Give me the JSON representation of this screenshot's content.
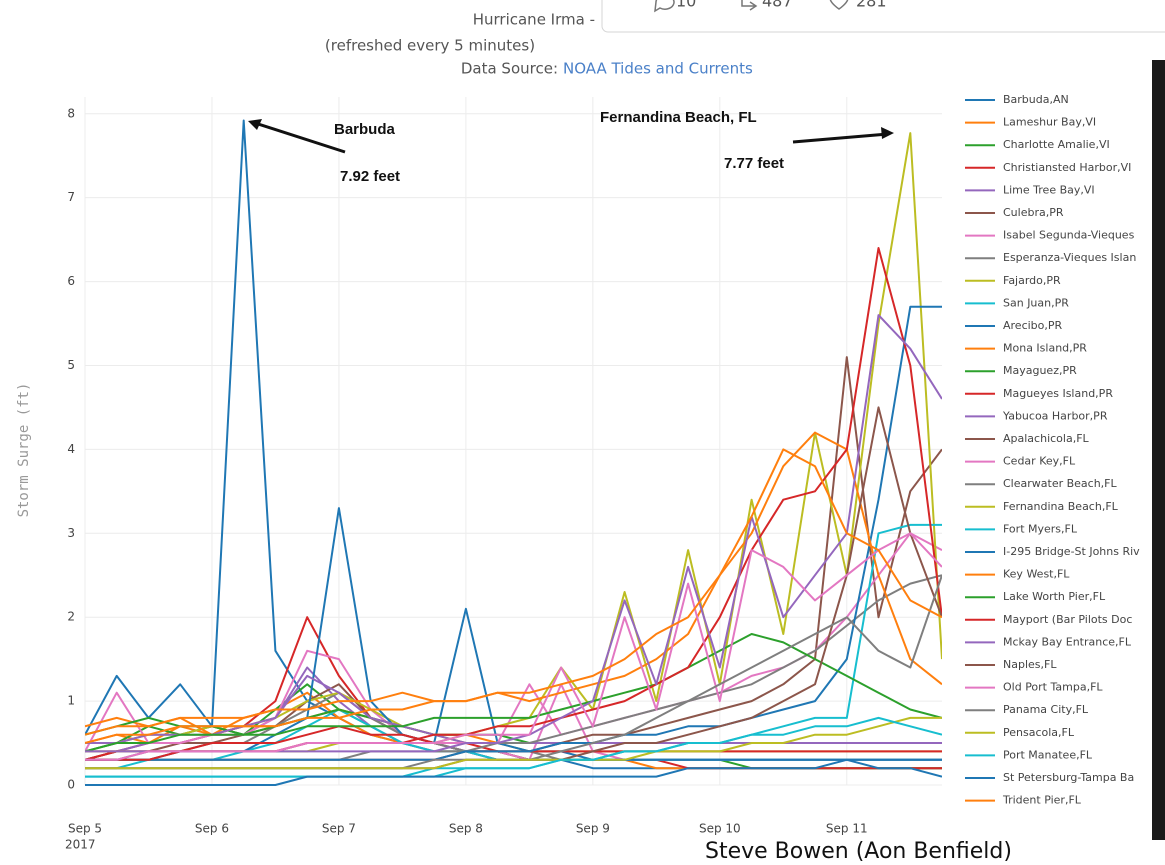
{
  "chart_data": {
    "type": "line",
    "title": "Hurricane Irma -",
    "subtitle": "(refreshed every 5 minutes)",
    "source_label": "Data Source:",
    "source_link": "NOAA Tides and Currents",
    "y_label": "Storm Surge (ft)",
    "x_year": "2017",
    "xlim": [
      5,
      11.75
    ],
    "xticks": [
      {
        "value": 5,
        "label": "Sep 5"
      },
      {
        "value": 6,
        "label": "Sep 6"
      },
      {
        "value": 7,
        "label": "Sep 7"
      },
      {
        "value": 8,
        "label": "Sep 8"
      },
      {
        "value": 9,
        "label": "Sep 9"
      },
      {
        "value": 10,
        "label": "Sep 10"
      },
      {
        "value": 11,
        "label": "Sep 11"
      }
    ],
    "ylim": [
      0,
      8.2
    ],
    "yticks": [
      0,
      1,
      2,
      3,
      4,
      5,
      6,
      7,
      8
    ],
    "grid": true,
    "legend": "right",
    "annotations": [
      {
        "text": "Barbuda",
        "value_text": "7.92 feet"
      },
      {
        "text": "Fernandina Beach, FL",
        "value_text": "7.77 feet"
      }
    ],
    "x": [
      5,
      5.25,
      5.5,
      5.75,
      6,
      6.25,
      6.5,
      6.75,
      7,
      7.25,
      7.5,
      7.75,
      8,
      8.25,
      8.5,
      8.75,
      9,
      9.25,
      9.5,
      9.75,
      10,
      10.25,
      10.5,
      10.75,
      11,
      11.25,
      11.5,
      11.75
    ],
    "series": [
      {
        "name": "Barbuda,AN",
        "color": "#1f77b4",
        "values": [
          0.6,
          1.3,
          0.8,
          1.2,
          0.7,
          7.92,
          1.6,
          1.0,
          0.8,
          0.6,
          0.5,
          0.5,
          0.4,
          0.3,
          0.3,
          0.3,
          0.2,
          0.2,
          0.2,
          0.2,
          0.2,
          0.2,
          0.2,
          0.2,
          0.2,
          0.2,
          0.2,
          0.2
        ]
      },
      {
        "name": "Lameshur Bay,VI",
        "color": "#ff7f0e",
        "values": [
          0.5,
          0.6,
          0.5,
          0.7,
          0.6,
          0.8,
          0.9,
          1.1,
          0.8,
          0.6,
          0.5,
          0.4,
          0.4,
          0.3,
          0.3,
          0.3,
          0.3,
          0.3,
          0.2,
          0.2,
          0.2,
          0.2,
          0.2,
          0.2,
          0.2,
          0.2,
          0.2,
          0.2
        ]
      },
      {
        "name": "Charlotte Amalie,VI",
        "color": "#2ca02c",
        "values": [
          0.4,
          0.5,
          0.7,
          0.6,
          0.7,
          0.6,
          0.9,
          1.2,
          0.9,
          0.7,
          0.5,
          0.5,
          0.4,
          0.4,
          0.3,
          0.3,
          0.3,
          0.3,
          0.3,
          0.3,
          0.3,
          0.2,
          0.2,
          0.2,
          0.2,
          0.2,
          0.2,
          0.2
        ]
      },
      {
        "name": "Christiansted Harbor,VI",
        "color": "#d62728",
        "values": [
          0.3,
          0.4,
          0.5,
          0.5,
          0.6,
          0.7,
          1.0,
          2.0,
          1.3,
          0.8,
          0.6,
          0.5,
          0.4,
          0.4,
          0.3,
          0.3,
          0.3,
          0.3,
          0.3,
          0.2,
          0.2,
          0.2,
          0.2,
          0.2,
          0.2,
          0.2,
          0.2,
          0.2
        ]
      },
      {
        "name": "Lime Tree Bay,VI",
        "color": "#9467bd",
        "values": [
          0.4,
          0.4,
          0.5,
          0.5,
          0.6,
          0.6,
          0.8,
          1.4,
          1.0,
          0.7,
          0.5,
          0.4,
          0.4,
          0.3,
          0.3,
          0.3,
          0.3,
          0.3,
          0.3,
          0.3,
          0.3,
          0.3,
          0.3,
          0.3,
          0.3,
          0.3,
          0.3,
          0.3
        ]
      },
      {
        "name": "Culebra,PR",
        "color": "#8c564b",
        "values": [
          0.3,
          0.4,
          0.4,
          0.5,
          0.5,
          0.6,
          0.7,
          1.0,
          1.2,
          0.8,
          0.6,
          0.5,
          0.4,
          0.4,
          0.3,
          0.3,
          0.3,
          0.3,
          0.3,
          0.3,
          0.3,
          0.3,
          0.3,
          0.3,
          0.3,
          0.3,
          0.3,
          0.3
        ]
      },
      {
        "name": "Isabel Segunda-Vieques",
        "color": "#e377c2",
        "values": [
          0.4,
          1.1,
          0.5,
          0.5,
          0.6,
          0.6,
          0.8,
          1.6,
          1.5,
          0.9,
          0.6,
          0.5,
          0.4,
          0.4,
          0.3,
          1.2,
          0.4,
          0.3,
          0.3,
          0.3,
          0.3,
          0.3,
          0.3,
          0.3,
          0.3,
          0.3,
          0.3,
          0.3
        ]
      },
      {
        "name": "Esperanza-Vieques Islan",
        "color": "#7f7f7f",
        "values": [
          0.3,
          0.3,
          0.4,
          0.4,
          0.5,
          0.5,
          0.7,
          0.9,
          1.1,
          0.8,
          0.6,
          0.5,
          0.4,
          0.4,
          0.4,
          0.3,
          0.3,
          0.3,
          0.3,
          0.3,
          0.3,
          0.3,
          0.3,
          0.3,
          0.3,
          0.3,
          0.3,
          0.3
        ]
      },
      {
        "name": "Fajardo,PR",
        "color": "#bcbd22",
        "values": [
          0.5,
          0.5,
          0.6,
          0.6,
          0.7,
          0.7,
          0.8,
          1.0,
          1.1,
          0.9,
          0.7,
          0.6,
          0.5,
          0.5,
          0.4,
          0.4,
          0.4,
          0.4,
          0.4,
          0.4,
          0.4,
          0.4,
          0.4,
          0.4,
          0.4,
          0.4,
          0.4,
          0.4
        ]
      },
      {
        "name": "San Juan,PR",
        "color": "#17becf",
        "values": [
          0.2,
          0.2,
          0.3,
          0.3,
          0.3,
          0.4,
          0.5,
          0.7,
          0.9,
          0.7,
          0.5,
          0.4,
          0.4,
          0.3,
          0.3,
          0.3,
          0.3,
          0.3,
          0.3,
          0.3,
          0.3,
          0.3,
          0.3,
          0.3,
          0.3,
          0.3,
          0.3,
          0.3
        ]
      },
      {
        "name": "Arecibo,PR",
        "color": "#1f77b4",
        "values": [
          0.3,
          0.3,
          0.3,
          0.4,
          0.4,
          0.4,
          0.6,
          0.8,
          3.3,
          1.0,
          0.6,
          0.5,
          2.1,
          0.5,
          0.4,
          0.4,
          0.3,
          0.3,
          0.3,
          0.3,
          0.3,
          0.3,
          0.3,
          0.3,
          0.3,
          0.3,
          0.3,
          0.3
        ]
      },
      {
        "name": "Mona Island,PR",
        "color": "#ff7f0e",
        "values": [
          0.7,
          0.8,
          0.7,
          0.8,
          0.6,
          0.7,
          0.7,
          0.8,
          0.9,
          0.8,
          0.7,
          0.6,
          0.6,
          0.5,
          0.5,
          0.5,
          0.5,
          0.5,
          0.5,
          0.5,
          0.5,
          0.5,
          0.5,
          0.5,
          0.5,
          0.5,
          0.5,
          0.5
        ]
      },
      {
        "name": "Mayaguez,PR",
        "color": "#2ca02c",
        "values": [
          0.6,
          0.7,
          0.8,
          0.7,
          0.7,
          0.6,
          0.7,
          0.8,
          0.9,
          0.8,
          0.7,
          0.6,
          0.6,
          0.6,
          0.5,
          0.5,
          0.5,
          0.5,
          0.5,
          0.5,
          0.5,
          0.5,
          0.5,
          0.5,
          0.5,
          0.5,
          0.5,
          0.5
        ]
      },
      {
        "name": "Magueyes Island,PR",
        "color": "#d62728",
        "values": [
          0.3,
          0.4,
          0.4,
          0.4,
          0.5,
          0.5,
          0.5,
          0.6,
          0.7,
          0.6,
          0.6,
          0.5,
          0.5,
          0.4,
          0.4,
          0.4,
          0.4,
          0.4,
          0.4,
          0.4,
          0.4,
          0.4,
          0.4,
          0.4,
          0.4,
          0.4,
          0.4,
          0.4
        ]
      },
      {
        "name": "Yabucoa Harbor,PR",
        "color": "#9467bd",
        "values": [
          0.5,
          0.5,
          0.6,
          0.6,
          0.6,
          0.7,
          0.8,
          1.3,
          1.1,
          0.8,
          0.7,
          0.6,
          0.5,
          0.5,
          0.5,
          0.5,
          0.5,
          0.5,
          0.5,
          0.5,
          0.5,
          0.5,
          0.5,
          0.5,
          0.5,
          0.5,
          0.5,
          0.5
        ]
      },
      {
        "name": "Apalachicola,FL",
        "color": "#8c564b",
        "values": [
          0.3,
          0.3,
          0.3,
          0.3,
          0.3,
          0.3,
          0.3,
          0.3,
          0.3,
          0.3,
          0.3,
          0.3,
          0.4,
          0.4,
          0.4,
          0.5,
          0.6,
          0.6,
          0.7,
          0.8,
          0.9,
          1.0,
          1.2,
          1.5,
          5.1,
          2.0,
          3.5,
          4.0
        ]
      },
      {
        "name": "Cedar Key,FL",
        "color": "#e377c2",
        "values": [
          0.4,
          0.4,
          0.4,
          0.4,
          0.4,
          0.4,
          0.4,
          0.5,
          0.5,
          0.5,
          0.5,
          0.5,
          0.5,
          0.5,
          1.2,
          0.6,
          0.7,
          0.8,
          0.9,
          1.0,
          1.1,
          1.3,
          1.4,
          1.6,
          2.0,
          2.5,
          3.0,
          2.8
        ]
      },
      {
        "name": "Clearwater Beach,FL",
        "color": "#7f7f7f",
        "values": [
          0.3,
          0.3,
          0.3,
          0.3,
          0.3,
          0.3,
          0.3,
          0.3,
          0.3,
          0.4,
          0.4,
          0.4,
          0.4,
          0.5,
          0.5,
          0.6,
          0.7,
          0.8,
          0.9,
          1.0,
          1.1,
          1.2,
          1.4,
          1.6,
          1.9,
          2.2,
          2.4,
          2.5
        ]
      },
      {
        "name": "Fernandina Beach,FL",
        "color": "#bcbd22",
        "values": [
          0.4,
          0.4,
          0.4,
          0.4,
          0.4,
          0.4,
          0.4,
          0.4,
          0.5,
          0.5,
          0.5,
          0.5,
          0.6,
          0.7,
          0.8,
          1.4,
          0.9,
          2.3,
          1.0,
          2.8,
          1.2,
          3.4,
          1.8,
          4.2,
          2.5,
          5.5,
          7.77,
          1.5
        ]
      },
      {
        "name": "Fort Myers,FL",
        "color": "#17becf",
        "values": [
          0.1,
          0.1,
          0.1,
          0.1,
          0.1,
          0.1,
          0.1,
          0.1,
          0.1,
          0.1,
          0.1,
          0.2,
          0.2,
          0.2,
          0.2,
          0.3,
          0.3,
          0.4,
          0.4,
          0.5,
          0.5,
          0.6,
          0.7,
          0.8,
          0.8,
          3.0,
          3.1,
          3.1
        ]
      },
      {
        "name": "I-295 Bridge-St Johns Riv",
        "color": "#1f77b4",
        "values": [
          0.3,
          0.3,
          0.3,
          0.3,
          0.3,
          0.3,
          0.3,
          0.3,
          0.3,
          0.3,
          0.3,
          0.3,
          0.4,
          0.4,
          0.4,
          0.5,
          0.5,
          0.6,
          0.6,
          0.7,
          0.7,
          0.8,
          0.9,
          1.0,
          1.5,
          3.4,
          5.7,
          5.7
        ]
      },
      {
        "name": "Key West,FL",
        "color": "#ff7f0e",
        "values": [
          0.5,
          0.6,
          0.6,
          0.7,
          0.7,
          0.7,
          0.7,
          0.8,
          0.8,
          0.9,
          0.9,
          1.0,
          1.0,
          1.1,
          1.0,
          1.1,
          1.2,
          1.3,
          1.5,
          1.8,
          2.5,
          3.0,
          3.8,
          4.2,
          4.0,
          2.5,
          1.5,
          1.2
        ]
      },
      {
        "name": "Lake Worth Pier,FL",
        "color": "#2ca02c",
        "values": [
          0.4,
          0.5,
          0.5,
          0.6,
          0.6,
          0.6,
          0.6,
          0.7,
          0.7,
          0.7,
          0.7,
          0.8,
          0.8,
          0.8,
          0.8,
          0.9,
          1.0,
          1.1,
          1.2,
          1.4,
          1.6,
          1.8,
          1.7,
          1.5,
          1.3,
          1.1,
          0.9,
          0.8
        ]
      },
      {
        "name": "Mayport (Bar Pilots Doc",
        "color": "#d62728",
        "values": [
          0.3,
          0.3,
          0.3,
          0.4,
          0.4,
          0.4,
          0.4,
          0.5,
          0.5,
          0.5,
          0.5,
          0.6,
          0.6,
          0.7,
          0.7,
          0.8,
          0.9,
          1.0,
          1.2,
          1.4,
          2.0,
          2.8,
          3.4,
          3.5,
          4.0,
          6.4,
          5.0,
          2.0
        ]
      },
      {
        "name": "Mckay Bay Entrance,FL",
        "color": "#9467bd",
        "values": [
          0.4,
          0.4,
          0.4,
          0.4,
          0.4,
          0.4,
          0.4,
          0.4,
          0.4,
          0.4,
          0.4,
          0.4,
          0.5,
          0.5,
          0.6,
          0.8,
          1.0,
          2.2,
          1.2,
          2.6,
          1.4,
          3.2,
          2.0,
          2.5,
          3.0,
          5.6,
          5.2,
          4.6
        ]
      },
      {
        "name": "Naples,FL",
        "color": "#8c564b",
        "values": [
          0.2,
          0.2,
          0.2,
          0.2,
          0.2,
          0.2,
          0.2,
          0.2,
          0.2,
          0.2,
          0.2,
          0.2,
          0.3,
          0.3,
          0.3,
          0.3,
          0.4,
          0.5,
          0.5,
          0.6,
          0.7,
          0.8,
          1.0,
          1.2,
          2.5,
          4.5,
          3.0,
          2.0
        ]
      },
      {
        "name": "Old Port Tampa,FL",
        "color": "#e377c2",
        "values": [
          0.3,
          0.3,
          0.4,
          0.4,
          0.4,
          0.4,
          0.4,
          0.5,
          0.5,
          0.5,
          0.5,
          0.5,
          0.6,
          0.6,
          0.6,
          1.4,
          0.7,
          2.0,
          0.9,
          2.4,
          1.0,
          2.8,
          2.6,
          2.2,
          2.5,
          2.8,
          3.0,
          2.6
        ]
      },
      {
        "name": "Panama City,FL",
        "color": "#7f7f7f",
        "values": [
          0.2,
          0.2,
          0.2,
          0.2,
          0.2,
          0.2,
          0.2,
          0.2,
          0.2,
          0.2,
          0.2,
          0.3,
          0.3,
          0.3,
          0.3,
          0.4,
          0.5,
          0.6,
          0.8,
          1.0,
          1.2,
          1.4,
          1.6,
          1.8,
          2.0,
          1.6,
          1.4,
          2.5
        ]
      },
      {
        "name": "Pensacola,FL",
        "color": "#bcbd22",
        "values": [
          0.2,
          0.2,
          0.2,
          0.2,
          0.2,
          0.2,
          0.2,
          0.2,
          0.2,
          0.2,
          0.2,
          0.2,
          0.3,
          0.3,
          0.3,
          0.3,
          0.3,
          0.3,
          0.4,
          0.4,
          0.4,
          0.5,
          0.5,
          0.6,
          0.6,
          0.7,
          0.8,
          0.8
        ]
      },
      {
        "name": "Port Manatee,FL",
        "color": "#17becf",
        "values": [
          0.1,
          0.1,
          0.1,
          0.1,
          0.1,
          0.1,
          0.1,
          0.1,
          0.1,
          0.1,
          0.1,
          0.1,
          0.2,
          0.2,
          0.2,
          0.3,
          0.3,
          0.4,
          0.4,
          0.5,
          0.5,
          0.6,
          0.6,
          0.7,
          0.7,
          0.8,
          0.7,
          0.6
        ]
      },
      {
        "name": "St Petersburg-Tampa Ba",
        "color": "#1f77b4",
        "values": [
          0.0,
          0.0,
          0.0,
          0.0,
          0.0,
          0.0,
          0.0,
          0.1,
          0.1,
          0.1,
          0.1,
          0.1,
          0.1,
          0.1,
          0.1,
          0.1,
          0.1,
          0.1,
          0.1,
          0.2,
          0.2,
          0.2,
          0.2,
          0.2,
          0.3,
          0.2,
          0.2,
          0.1
        ]
      },
      {
        "name": "Trident Pier,FL",
        "color": "#ff7f0e",
        "values": [
          0.6,
          0.7,
          0.7,
          0.8,
          0.8,
          0.8,
          0.9,
          0.9,
          1.0,
          1.0,
          1.1,
          1.0,
          1.0,
          1.1,
          1.1,
          1.2,
          1.3,
          1.5,
          1.8,
          2.0,
          2.5,
          3.2,
          4.0,
          3.8,
          3.0,
          2.8,
          2.2,
          2.0
        ]
      }
    ]
  },
  "tweet": {
    "replies": "10",
    "retweets": "487",
    "likes": "281"
  },
  "caption": "Steve Bowen (Aon Benfield)"
}
